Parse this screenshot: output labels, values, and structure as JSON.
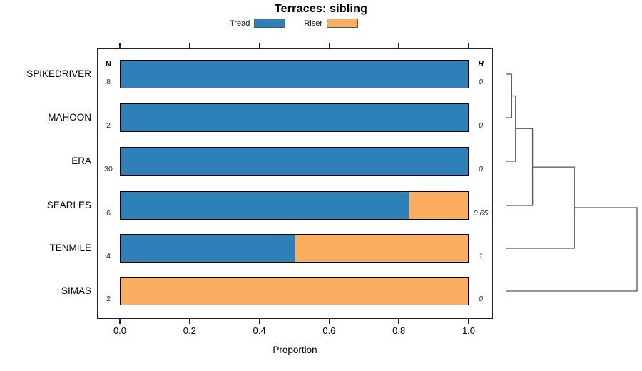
{
  "title": "Terraces: sibling",
  "legend": {
    "items": [
      {
        "label": "Tread",
        "color": "#2E80B9"
      },
      {
        "label": "Riser",
        "color": "#FBAD60"
      }
    ]
  },
  "chart_data": {
    "type": "bar",
    "orientation": "horizontal",
    "stacked": true,
    "title": "Terraces: sibling",
    "xlabel": "Proportion",
    "x_ticks": [
      "0.0",
      "0.2",
      "0.4",
      "0.6",
      "0.8",
      "1.0"
    ],
    "xlim": [
      0,
      1
    ],
    "grid": false,
    "legend_position": "top",
    "categories": [
      "SPIKEDRIVER",
      "MAHOON",
      "ERA",
      "SEARLES",
      "TENMILE",
      "SIMAS"
    ],
    "series": [
      {
        "name": "Tread",
        "color": "#2E80B9",
        "values": [
          1,
          1,
          1,
          0.83,
          0.5,
          0
        ]
      },
      {
        "name": "Riser",
        "color": "#FBAD60",
        "values": [
          0,
          0,
          0,
          0.17,
          0.5,
          1
        ]
      }
    ],
    "n_header": "N",
    "n_values": [
      "8",
      "2",
      "30",
      "6",
      "4",
      "2"
    ],
    "h_header": "H",
    "h_values": [
      "0",
      "0",
      "0",
      "0.65",
      "1",
      "0"
    ],
    "dendrogram": {
      "leaves": [
        "SPIKEDRIVER",
        "MAHOON",
        "ERA",
        "SEARLES",
        "TENMILE",
        "SIMAS"
      ],
      "merges": [
        {
          "members": [
            "SPIKEDRIVER",
            "MAHOON"
          ],
          "height": 0.04
        },
        {
          "members": [
            "cluster-1",
            "ERA"
          ],
          "height": 0.07
        },
        {
          "members": [
            "cluster-2",
            "SEARLES"
          ],
          "height": 0.2
        },
        {
          "members": [
            "cluster-3",
            "TENMILE"
          ],
          "height": 0.52
        },
        {
          "members": [
            "cluster-4",
            "SIMAS"
          ],
          "height": 1.0
        }
      ]
    }
  },
  "colors": {
    "bar_border": "#000000",
    "axis": "#222222",
    "dendrogram_line": "#555555"
  }
}
